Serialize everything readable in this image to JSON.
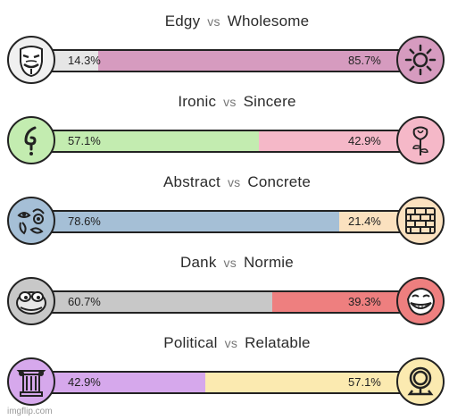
{
  "axes": [
    {
      "left": {
        "name": "Edgy",
        "percent_label": "14.3%",
        "fraction": 0.143,
        "color": "#e6e6e6",
        "icon": "guy-fawkes-mask-icon"
      },
      "vs": "vs",
      "right": {
        "name": "Wholesome",
        "percent_label": "85.7%",
        "fraction": 0.857,
        "color": "#d69bbf",
        "icon": "sun-icon"
      }
    },
    {
      "left": {
        "name": "Ironic",
        "percent_label": "57.1%",
        "fraction": 0.571,
        "color": "#c3ecb0",
        "icon": "ironic-symbol-icon"
      },
      "vs": "vs",
      "right": {
        "name": "Sincere",
        "percent_label": "42.9%",
        "fraction": 0.429,
        "color": "#f5b8c8",
        "icon": "rose-icon"
      }
    },
    {
      "left": {
        "name": "Abstract",
        "percent_label": "78.6%",
        "fraction": 0.786,
        "color": "#a5bfd6",
        "icon": "abstract-face-icon"
      },
      "vs": "vs",
      "right": {
        "name": "Concrete",
        "percent_label": "21.4%",
        "fraction": 0.214,
        "color": "#fbe1bf",
        "icon": "brick-wall-icon"
      }
    },
    {
      "left": {
        "name": "Dank",
        "percent_label": "60.7%",
        "fraction": 0.607,
        "color": "#c8c8c8",
        "icon": "pepe-frog-icon"
      },
      "vs": "vs",
      "right": {
        "name": "Normie",
        "percent_label": "39.3%",
        "fraction": 0.393,
        "color": "#ee7f7f",
        "icon": "trollface-icon"
      }
    },
    {
      "left": {
        "name": "Political",
        "percent_label": "42.9%",
        "fraction": 0.429,
        "color": "#d6a8ec",
        "icon": "greek-column-icon"
      },
      "vs": "vs",
      "right": {
        "name": "Relatable",
        "percent_label": "57.1%",
        "fraction": 0.571,
        "color": "#fbeab0",
        "icon": "mirror-icon"
      }
    }
  ],
  "watermark": "imgflip.com"
}
